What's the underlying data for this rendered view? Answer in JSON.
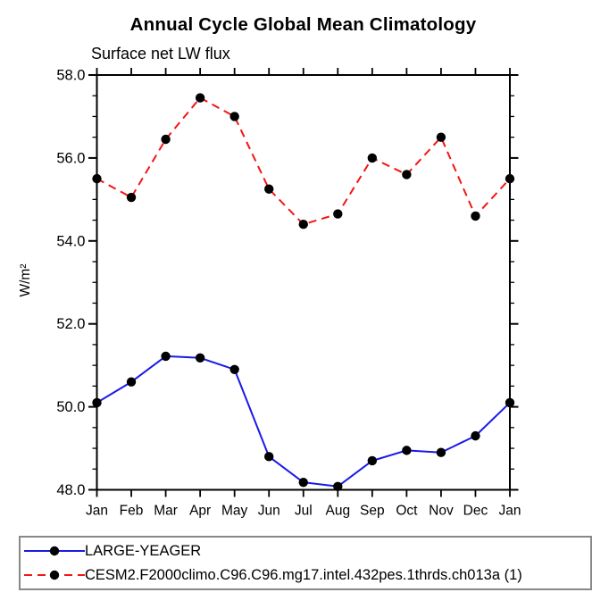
{
  "chart_data": {
    "type": "line",
    "title": "Annual Cycle Global Mean Climatology",
    "subtitle": "Surface net LW flux",
    "ylabel": "W/m²",
    "categories": [
      "Jan",
      "Feb",
      "Mar",
      "Apr",
      "May",
      "Jun",
      "Jul",
      "Aug",
      "Sep",
      "Oct",
      "Nov",
      "Dec",
      "Jan"
    ],
    "ylim": [
      48.0,
      58.0
    ],
    "yticks": [
      48.0,
      50.0,
      52.0,
      54.0,
      56.0,
      58.0
    ],
    "yminor_step": 0.5,
    "grid": "off",
    "frame": "box-outward-ticks",
    "legend_position": "bottom-left",
    "marker": "filled-circle",
    "marker_color": "#000000",
    "series": [
      {
        "name": "LARGE-YEAGER",
        "color": "#1a1ae6",
        "style": "solid",
        "values": [
          50.1,
          50.6,
          51.22,
          51.18,
          50.9,
          48.8,
          48.18,
          48.08,
          48.7,
          48.95,
          48.9,
          49.3,
          50.1
        ]
      },
      {
        "name": "CESM2.F2000climo.C96.C96.mg17.intel.432pes.1thrds.ch013a (1)",
        "color": "#f41414",
        "style": "dashed",
        "values": [
          55.5,
          55.05,
          56.45,
          57.45,
          57.0,
          55.25,
          54.4,
          54.65,
          56.0,
          55.6,
          56.5,
          54.6,
          55.5
        ]
      }
    ]
  }
}
